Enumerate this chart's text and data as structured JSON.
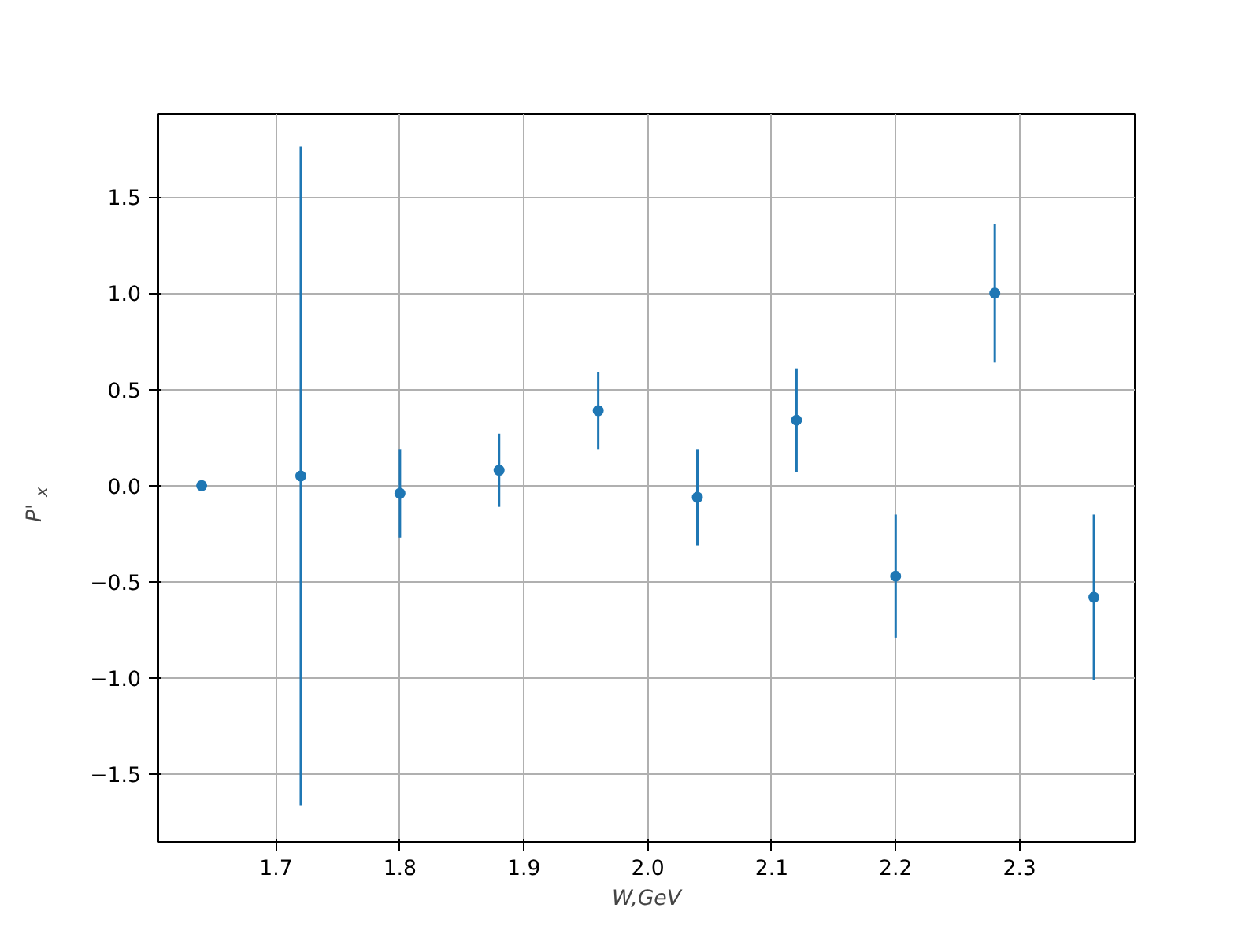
{
  "chart_data": {
    "type": "scatter",
    "xlabel": "W,GeV",
    "ylabel": "P'$_{x}$",
    "x": [
      1.64,
      1.72,
      1.8,
      1.88,
      1.96,
      2.04,
      2.12,
      2.2,
      2.28,
      2.36
    ],
    "series": [
      {
        "color": "#1f77b4",
        "values": [
          0.0,
          0.05,
          -0.04,
          0.08,
          0.39,
          -0.06,
          0.34,
          -0.47,
          1.0,
          -0.58
        ],
        "errors": [
          null,
          1.71,
          0.23,
          0.19,
          0.2,
          0.25,
          0.27,
          0.32,
          0.36,
          0.43
        ]
      }
    ],
    "xlim": [
      1.605,
      2.393
    ],
    "ylim": [
      -1.85,
      1.93
    ],
    "xticks": [
      1.7,
      1.8,
      1.9,
      {
        "value": 2,
        "label": "2.0"
      },
      2.1,
      2.2,
      2.3
    ],
    "yticks": [
      -1.5,
      {
        "value": -1,
        "label": "−1.0"
      },
      -0.5,
      {
        "value": 0,
        "label": "0.0"
      },
      0.5,
      {
        "value": 1,
        "label": "1.0"
      },
      1.5
    ],
    "grid": true,
    "marker": "circle"
  }
}
